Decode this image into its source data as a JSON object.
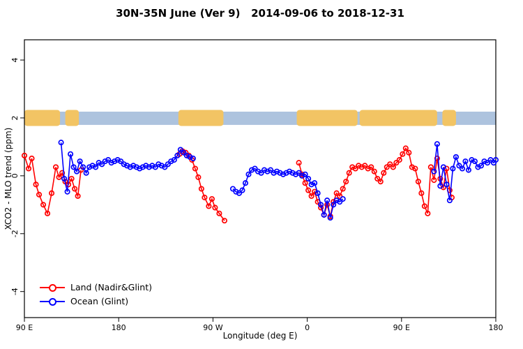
{
  "figure": {
    "background": "#ffffff"
  },
  "chart_data": {
    "type": "line",
    "title": "30N-35N June (Ver 9)   2014-09-06 to 2018-12-31",
    "xlabel": "Longitude (deg E)",
    "ylabel": "XCO2 - MLO trend (ppm)",
    "legend_position": "bottom-left",
    "grid": false,
    "x_axis": {
      "min": 90,
      "max": 540,
      "tick_values": [
        90,
        180,
        270,
        360,
        450,
        540
      ],
      "tick_labels": [
        "90 E",
        "180",
        "90 W",
        "0",
        "90 E",
        "180"
      ]
    },
    "y_axis": {
      "min": -4.9,
      "max": 4.7,
      "tick_values": [
        -4,
        -2,
        0,
        2,
        4
      ],
      "tick_labels": [
        "-4",
        "-2",
        "0",
        "2",
        "4"
      ]
    },
    "map_strip": {
      "y_center": 2,
      "ocean_color": "#adc3de",
      "land_color": "#f2c464",
      "land_segments_deg": [
        [
          90,
          124
        ],
        [
          129,
          142
        ],
        [
          237,
          280
        ],
        [
          350,
          408
        ],
        [
          410,
          484
        ],
        [
          489,
          502
        ]
      ]
    },
    "series": [
      {
        "name": "Land (Nadir&Glint)",
        "color": "#ff0000",
        "marker": "open-circle",
        "segments": [
          [
            [
              90,
              0.7
            ],
            [
              94,
              0.25
            ],
            [
              97,
              0.6
            ],
            [
              101,
              -0.3
            ],
            [
              104,
              -0.65
            ],
            [
              108,
              -1.0
            ],
            [
              112,
              -1.3
            ],
            [
              116,
              -0.6
            ],
            [
              120,
              0.3
            ],
            [
              123,
              -0.05
            ],
            [
              126,
              0.1
            ],
            [
              129,
              -0.2
            ],
            [
              132,
              -0.3
            ],
            [
              135,
              -0.1
            ],
            [
              138,
              -0.45
            ],
            [
              141,
              -0.7
            ],
            [
              144,
              0.2
            ]
          ],
          [
            [
              238,
              0.75
            ],
            [
              241,
              0.85
            ],
            [
              244,
              0.8
            ],
            [
              247,
              0.7
            ],
            [
              250,
              0.55
            ],
            [
              253,
              0.25
            ],
            [
              256,
              -0.05
            ],
            [
              259,
              -0.45
            ],
            [
              262,
              -0.75
            ],
            [
              266,
              -1.05
            ],
            [
              269,
              -0.8
            ],
            [
              272,
              -1.1
            ],
            [
              276,
              -1.3
            ],
            [
              281,
              -1.55
            ]
          ],
          [
            [
              352,
              0.45
            ],
            [
              355,
              0.05
            ],
            [
              358,
              -0.25
            ],
            [
              361,
              -0.5
            ],
            [
              364,
              -0.7
            ],
            [
              367,
              -0.55
            ],
            [
              370,
              -0.9
            ],
            [
              373,
              -1.1
            ],
            [
              376,
              -1.35
            ],
            [
              379,
              -1.0
            ],
            [
              382,
              -1.4
            ],
            [
              385,
              -0.9
            ],
            [
              388,
              -0.6
            ],
            [
              391,
              -0.7
            ],
            [
              394,
              -0.45
            ],
            [
              397,
              -0.2
            ],
            [
              400,
              0.1
            ],
            [
              403,
              0.3
            ],
            [
              406,
              0.25
            ],
            [
              409,
              0.35
            ],
            [
              412,
              0.3
            ],
            [
              415,
              0.35
            ],
            [
              418,
              0.25
            ],
            [
              421,
              0.3
            ],
            [
              424,
              0.15
            ],
            [
              427,
              -0.1
            ],
            [
              430,
              -0.2
            ],
            [
              433,
              0.1
            ],
            [
              436,
              0.3
            ],
            [
              439,
              0.4
            ],
            [
              442,
              0.3
            ],
            [
              445,
              0.45
            ],
            [
              448,
              0.55
            ],
            [
              451,
              0.75
            ],
            [
              454,
              0.95
            ],
            [
              457,
              0.8
            ],
            [
              460,
              0.3
            ],
            [
              463,
              0.25
            ],
            [
              466,
              -0.2
            ],
            [
              469,
              -0.6
            ],
            [
              472,
              -1.05
            ],
            [
              475,
              -1.3
            ],
            [
              478,
              0.3
            ],
            [
              481,
              -0.15
            ],
            [
              484,
              0.6
            ],
            [
              487,
              -0.1
            ],
            [
              490,
              -0.4
            ],
            [
              493,
              0.25
            ],
            [
              496,
              -0.5
            ],
            [
              498,
              -0.75
            ]
          ]
        ]
      },
      {
        "name": "Ocean (Glint)",
        "color": "#0000ff",
        "marker": "open-circle",
        "segments": [
          [
            [
              125,
              1.15
            ],
            [
              128,
              -0.1
            ],
            [
              131,
              -0.55
            ],
            [
              134,
              0.75
            ],
            [
              137,
              0.3
            ],
            [
              140,
              0.15
            ],
            [
              143,
              0.5
            ],
            [
              146,
              0.3
            ],
            [
              149,
              0.1
            ],
            [
              152,
              0.3
            ],
            [
              155,
              0.35
            ],
            [
              158,
              0.3
            ],
            [
              161,
              0.45
            ],
            [
              164,
              0.4
            ],
            [
              167,
              0.5
            ],
            [
              170,
              0.55
            ],
            [
              173,
              0.45
            ],
            [
              176,
              0.5
            ],
            [
              179,
              0.55
            ],
            [
              182,
              0.5
            ],
            [
              185,
              0.4
            ],
            [
              188,
              0.35
            ],
            [
              191,
              0.3
            ],
            [
              194,
              0.35
            ],
            [
              197,
              0.3
            ],
            [
              200,
              0.25
            ],
            [
              203,
              0.3
            ],
            [
              206,
              0.35
            ],
            [
              209,
              0.3
            ],
            [
              212,
              0.35
            ],
            [
              215,
              0.3
            ],
            [
              218,
              0.4
            ],
            [
              221,
              0.35
            ],
            [
              224,
              0.3
            ],
            [
              227,
              0.4
            ],
            [
              230,
              0.5
            ],
            [
              233,
              0.55
            ],
            [
              236,
              0.7
            ],
            [
              239,
              0.9
            ],
            [
              242,
              0.8
            ],
            [
              245,
              0.7
            ],
            [
              248,
              0.65
            ],
            [
              251,
              0.6
            ]
          ],
          [
            [
              289,
              -0.45
            ],
            [
              292,
              -0.55
            ],
            [
              295,
              -0.6
            ],
            [
              298,
              -0.5
            ],
            [
              301,
              -0.25
            ],
            [
              304,
              0.05
            ],
            [
              307,
              0.2
            ],
            [
              310,
              0.25
            ],
            [
              313,
              0.15
            ],
            [
              316,
              0.1
            ],
            [
              319,
              0.2
            ],
            [
              322,
              0.15
            ],
            [
              325,
              0.2
            ],
            [
              328,
              0.1
            ],
            [
              331,
              0.15
            ],
            [
              334,
              0.1
            ],
            [
              337,
              0.05
            ],
            [
              340,
              0.1
            ],
            [
              343,
              0.15
            ],
            [
              346,
              0.1
            ],
            [
              349,
              0.05
            ],
            [
              352,
              0.1
            ],
            [
              355,
              0.0
            ],
            [
              358,
              0.05
            ],
            [
              361,
              -0.1
            ],
            [
              364,
              -0.3
            ],
            [
              367,
              -0.25
            ],
            [
              370,
              -0.6
            ],
            [
              373,
              -1.0
            ],
            [
              376,
              -1.35
            ],
            [
              379,
              -0.85
            ],
            [
              382,
              -1.45
            ],
            [
              385,
              -1.0
            ],
            [
              388,
              -0.85
            ],
            [
              391,
              -0.9
            ],
            [
              394,
              -0.8
            ]
          ],
          [
            [
              481,
              0.15
            ],
            [
              484,
              1.1
            ],
            [
              487,
              -0.35
            ],
            [
              490,
              0.3
            ],
            [
              493,
              -0.3
            ],
            [
              496,
              -0.85
            ],
            [
              499,
              0.25
            ],
            [
              502,
              0.65
            ],
            [
              505,
              0.35
            ],
            [
              508,
              0.25
            ],
            [
              511,
              0.5
            ],
            [
              514,
              0.2
            ],
            [
              517,
              0.55
            ],
            [
              520,
              0.5
            ],
            [
              523,
              0.3
            ],
            [
              526,
              0.35
            ],
            [
              529,
              0.5
            ],
            [
              532,
              0.45
            ],
            [
              535,
              0.55
            ],
            [
              538,
              0.45
            ],
            [
              540,
              0.55
            ]
          ]
        ]
      }
    ]
  }
}
